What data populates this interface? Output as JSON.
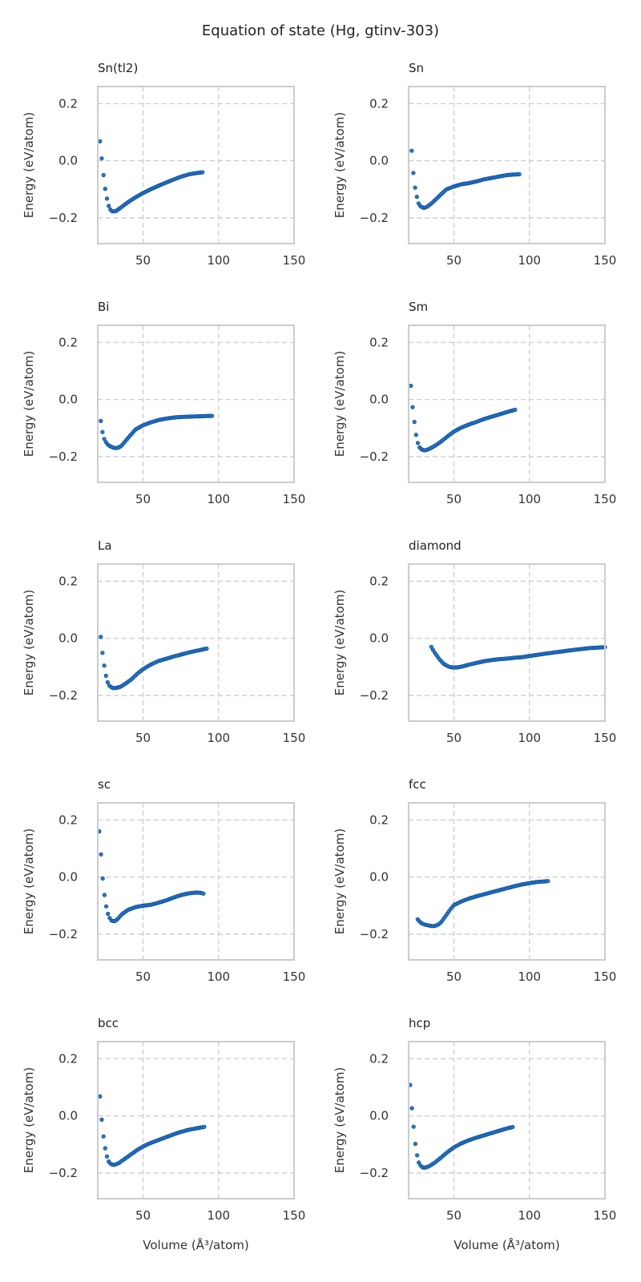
{
  "figure": {
    "title": "Equation of state (Hg, gtinv-303)"
  },
  "colors": {
    "marker": "#1f77d4",
    "marker_edge": "#0b3f7a",
    "grid": "#cccccc",
    "frame": "#cccccc"
  },
  "chart_data": [
    {
      "type": "scatter",
      "title": "Sn(tl2)",
      "xlabel": "",
      "ylabel": "Energy (eV/atom)",
      "xlim": [
        20,
        150
      ],
      "ylim": [
        -0.29,
        0.26
      ],
      "xticks": [
        "50",
        "100",
        "150"
      ],
      "yticks": [
        "0.2",
        "0.0",
        "−0.2"
      ],
      "grid": true,
      "anchors": [
        [
          21.5,
          0.068
        ],
        [
          23,
          -0.01
        ],
        [
          24,
          -0.06
        ],
        [
          25,
          -0.1
        ],
        [
          26,
          -0.13
        ],
        [
          27,
          -0.155
        ],
        [
          28,
          -0.168
        ],
        [
          29,
          -0.175
        ],
        [
          30,
          -0.178
        ],
        [
          32,
          -0.176
        ],
        [
          35,
          -0.165
        ],
        [
          40,
          -0.145
        ],
        [
          45,
          -0.128
        ],
        [
          50,
          -0.113
        ],
        [
          55,
          -0.1
        ],
        [
          60,
          -0.088
        ],
        [
          65,
          -0.077
        ],
        [
          70,
          -0.066
        ],
        [
          75,
          -0.056
        ],
        [
          80,
          -0.048
        ],
        [
          85,
          -0.043
        ],
        [
          90,
          -0.04
        ]
      ]
    },
    {
      "type": "scatter",
      "title": "Sn",
      "xlabel": "",
      "ylabel": "Energy (eV/atom)",
      "xlim": [
        20,
        150
      ],
      "ylim": [
        -0.29,
        0.26
      ],
      "xticks": [
        "50",
        "100",
        "150"
      ],
      "yticks": [
        "0.2",
        "0.0",
        "−0.2"
      ],
      "grid": true,
      "anchors": [
        [
          22,
          0.035
        ],
        [
          23,
          -0.035
        ],
        [
          24,
          -0.085
        ],
        [
          25,
          -0.115
        ],
        [
          26,
          -0.14
        ],
        [
          27,
          -0.155
        ],
        [
          28,
          -0.16
        ],
        [
          30,
          -0.165
        ],
        [
          32,
          -0.162
        ],
        [
          35,
          -0.15
        ],
        [
          40,
          -0.125
        ],
        [
          45,
          -0.1
        ],
        [
          50,
          -0.09
        ],
        [
          55,
          -0.082
        ],
        [
          60,
          -0.078
        ],
        [
          65,
          -0.072
        ],
        [
          70,
          -0.065
        ],
        [
          75,
          -0.06
        ],
        [
          80,
          -0.055
        ],
        [
          85,
          -0.05
        ],
        [
          90,
          -0.048
        ],
        [
          94,
          -0.047
        ]
      ]
    },
    {
      "type": "scatter",
      "title": "Bi",
      "xlabel": "",
      "ylabel": "Energy (eV/atom)",
      "xlim": [
        20,
        150
      ],
      "ylim": [
        -0.29,
        0.26
      ],
      "xticks": [
        "50",
        "100",
        "150"
      ],
      "yticks": [
        "0.2",
        "0.0",
        "−0.2"
      ],
      "grid": true,
      "anchors": [
        [
          22,
          -0.075
        ],
        [
          23,
          -0.11
        ],
        [
          24,
          -0.135
        ],
        [
          25,
          -0.145
        ],
        [
          26,
          -0.155
        ],
        [
          28,
          -0.163
        ],
        [
          30,
          -0.168
        ],
        [
          32,
          -0.17
        ],
        [
          34,
          -0.168
        ],
        [
          36,
          -0.16
        ],
        [
          40,
          -0.135
        ],
        [
          45,
          -0.105
        ],
        [
          50,
          -0.09
        ],
        [
          55,
          -0.08
        ],
        [
          60,
          -0.072
        ],
        [
          65,
          -0.067
        ],
        [
          70,
          -0.063
        ],
        [
          75,
          -0.061
        ],
        [
          80,
          -0.06
        ],
        [
          85,
          -0.059
        ],
        [
          90,
          -0.058
        ],
        [
          96,
          -0.057
        ]
      ]
    },
    {
      "type": "scatter",
      "title": "Sm",
      "xlabel": "",
      "ylabel": "Energy (eV/atom)",
      "xlim": [
        20,
        150
      ],
      "ylim": [
        -0.29,
        0.26
      ],
      "xticks": [
        "50",
        "100",
        "150"
      ],
      "yticks": [
        "0.2",
        "0.0",
        "−0.2"
      ],
      "grid": true,
      "anchors": [
        [
          21.5,
          0.048
        ],
        [
          22.5,
          -0.02
        ],
        [
          23.5,
          -0.065
        ],
        [
          24.5,
          -0.11
        ],
        [
          25.5,
          -0.14
        ],
        [
          26.5,
          -0.16
        ],
        [
          27.5,
          -0.17
        ],
        [
          29,
          -0.176
        ],
        [
          31,
          -0.178
        ],
        [
          34,
          -0.172
        ],
        [
          38,
          -0.16
        ],
        [
          42,
          -0.145
        ],
        [
          46,
          -0.128
        ],
        [
          50,
          -0.112
        ],
        [
          55,
          -0.098
        ],
        [
          60,
          -0.087
        ],
        [
          65,
          -0.078
        ],
        [
          70,
          -0.068
        ],
        [
          75,
          -0.06
        ],
        [
          80,
          -0.052
        ],
        [
          85,
          -0.044
        ],
        [
          91,
          -0.035
        ]
      ]
    },
    {
      "type": "scatter",
      "title": "La",
      "xlabel": "",
      "ylabel": "Energy (eV/atom)",
      "xlim": [
        20,
        150
      ],
      "ylim": [
        -0.29,
        0.26
      ],
      "xticks": [
        "50",
        "100",
        "150"
      ],
      "yticks": [
        "0.2",
        "0.0",
        "−0.2"
      ],
      "grid": true,
      "anchors": [
        [
          22,
          0.005
        ],
        [
          23,
          -0.045
        ],
        [
          24,
          -0.085
        ],
        [
          25,
          -0.12
        ],
        [
          26,
          -0.145
        ],
        [
          27,
          -0.16
        ],
        [
          28,
          -0.168
        ],
        [
          30,
          -0.174
        ],
        [
          32,
          -0.174
        ],
        [
          35,
          -0.17
        ],
        [
          38,
          -0.16
        ],
        [
          42,
          -0.145
        ],
        [
          46,
          -0.125
        ],
        [
          50,
          -0.108
        ],
        [
          55,
          -0.092
        ],
        [
          60,
          -0.08
        ],
        [
          65,
          -0.072
        ],
        [
          70,
          -0.064
        ],
        [
          75,
          -0.057
        ],
        [
          80,
          -0.05
        ],
        [
          85,
          -0.044
        ],
        [
          93,
          -0.035
        ]
      ]
    },
    {
      "type": "scatter",
      "title": "diamond",
      "xlabel": "",
      "ylabel": "Energy (eV/atom)",
      "xlim": [
        20,
        150
      ],
      "ylim": [
        -0.29,
        0.26
      ],
      "xticks": [
        "50",
        "100",
        "150"
      ],
      "yticks": [
        "0.2",
        "0.0",
        "−0.2"
      ],
      "grid": true,
      "anchors": [
        [
          35,
          -0.03
        ],
        [
          37,
          -0.048
        ],
        [
          39,
          -0.063
        ],
        [
          41,
          -0.077
        ],
        [
          43,
          -0.088
        ],
        [
          45,
          -0.095
        ],
        [
          47,
          -0.1
        ],
        [
          49,
          -0.102
        ],
        [
          52,
          -0.102
        ],
        [
          56,
          -0.098
        ],
        [
          60,
          -0.092
        ],
        [
          65,
          -0.086
        ],
        [
          70,
          -0.08
        ],
        [
          75,
          -0.076
        ],
        [
          80,
          -0.073
        ],
        [
          85,
          -0.071
        ],
        [
          90,
          -0.068
        ],
        [
          95,
          -0.066
        ],
        [
          100,
          -0.062
        ],
        [
          110,
          -0.054
        ],
        [
          120,
          -0.047
        ],
        [
          130,
          -0.04
        ],
        [
          140,
          -0.034
        ],
        [
          150,
          -0.031
        ]
      ]
    },
    {
      "type": "scatter",
      "title": "sc",
      "xlabel": "",
      "ylabel": "Energy (eV/atom)",
      "xlim": [
        20,
        150
      ],
      "ylim": [
        -0.29,
        0.26
      ],
      "xticks": [
        "50",
        "100",
        "150"
      ],
      "yticks": [
        "0.2",
        "0.0",
        "−0.2"
      ],
      "grid": true,
      "anchors": [
        [
          21,
          0.16
        ],
        [
          22.5,
          0.055
        ],
        [
          23.5,
          -0.02
        ],
        [
          24.5,
          -0.065
        ],
        [
          25.5,
          -0.1
        ],
        [
          26.5,
          -0.125
        ],
        [
          27.5,
          -0.14
        ],
        [
          29,
          -0.152
        ],
        [
          31,
          -0.155
        ],
        [
          33,
          -0.148
        ],
        [
          36,
          -0.13
        ],
        [
          40,
          -0.115
        ],
        [
          45,
          -0.105
        ],
        [
          50,
          -0.1
        ],
        [
          55,
          -0.097
        ],
        [
          60,
          -0.09
        ],
        [
          65,
          -0.082
        ],
        [
          70,
          -0.072
        ],
        [
          75,
          -0.063
        ],
        [
          80,
          -0.057
        ],
        [
          85,
          -0.054
        ],
        [
          88,
          -0.055
        ],
        [
          90,
          -0.058
        ]
      ]
    },
    {
      "type": "scatter",
      "title": "fcc",
      "xlabel": "",
      "ylabel": "Energy (eV/atom)",
      "xlim": [
        20,
        150
      ],
      "ylim": [
        -0.29,
        0.26
      ],
      "xticks": [
        "50",
        "100",
        "150"
      ],
      "yticks": [
        "0.2",
        "0.0",
        "−0.2"
      ],
      "grid": true,
      "anchors": [
        [
          26,
          -0.148
        ],
        [
          28,
          -0.16
        ],
        [
          30,
          -0.165
        ],
        [
          32,
          -0.168
        ],
        [
          34,
          -0.17
        ],
        [
          36,
          -0.172
        ],
        [
          38,
          -0.17
        ],
        [
          40,
          -0.165
        ],
        [
          42,
          -0.155
        ],
        [
          44,
          -0.14
        ],
        [
          46,
          -0.125
        ],
        [
          48,
          -0.11
        ],
        [
          50,
          -0.098
        ],
        [
          55,
          -0.085
        ],
        [
          60,
          -0.075
        ],
        [
          65,
          -0.067
        ],
        [
          70,
          -0.06
        ],
        [
          75,
          -0.053
        ],
        [
          80,
          -0.046
        ],
        [
          85,
          -0.039
        ],
        [
          90,
          -0.032
        ],
        [
          95,
          -0.026
        ],
        [
          100,
          -0.021
        ],
        [
          105,
          -0.017
        ],
        [
          110,
          -0.015
        ],
        [
          113,
          -0.014
        ]
      ]
    },
    {
      "type": "scatter",
      "title": "bcc",
      "xlabel": "Volume (Å³/atom)",
      "ylabel": "Energy (eV/atom)",
      "xlim": [
        20,
        150
      ],
      "ylim": [
        -0.29,
        0.26
      ],
      "xticks": [
        "50",
        "100",
        "150"
      ],
      "yticks": [
        "0.2",
        "0.0",
        "−0.2"
      ],
      "grid": true,
      "anchors": [
        [
          21.5,
          0.068
        ],
        [
          22.5,
          -0.005
        ],
        [
          23.5,
          -0.06
        ],
        [
          24.5,
          -0.1
        ],
        [
          25.5,
          -0.13
        ],
        [
          26.5,
          -0.15
        ],
        [
          27.5,
          -0.163
        ],
        [
          29,
          -0.17
        ],
        [
          31,
          -0.172
        ],
        [
          34,
          -0.165
        ],
        [
          38,
          -0.15
        ],
        [
          42,
          -0.135
        ],
        [
          46,
          -0.12
        ],
        [
          50,
          -0.107
        ],
        [
          55,
          -0.095
        ],
        [
          60,
          -0.085
        ],
        [
          65,
          -0.075
        ],
        [
          70,
          -0.065
        ],
        [
          75,
          -0.056
        ],
        [
          80,
          -0.049
        ],
        [
          85,
          -0.044
        ],
        [
          91,
          -0.038
        ]
      ]
    },
    {
      "type": "scatter",
      "title": "hcp",
      "xlabel": "Volume (Å³/atom)",
      "ylabel": "Energy (eV/atom)",
      "xlim": [
        20,
        150
      ],
      "ylim": [
        -0.29,
        0.26
      ],
      "xticks": [
        "50",
        "100",
        "150"
      ],
      "yticks": [
        "0.2",
        "0.0",
        "−0.2"
      ],
      "grid": true,
      "anchors": [
        [
          21,
          0.108
        ],
        [
          22,
          0.035
        ],
        [
          23,
          -0.02
        ],
        [
          24,
          -0.08
        ],
        [
          25,
          -0.12
        ],
        [
          26,
          -0.15
        ],
        [
          27,
          -0.168
        ],
        [
          28.5,
          -0.178
        ],
        [
          30,
          -0.182
        ],
        [
          33,
          -0.178
        ],
        [
          37,
          -0.165
        ],
        [
          41,
          -0.148
        ],
        [
          45,
          -0.13
        ],
        [
          50,
          -0.11
        ],
        [
          55,
          -0.096
        ],
        [
          60,
          -0.085
        ],
        [
          65,
          -0.076
        ],
        [
          70,
          -0.068
        ],
        [
          75,
          -0.06
        ],
        [
          80,
          -0.052
        ],
        [
          85,
          -0.044
        ],
        [
          89,
          -0.039
        ]
      ]
    }
  ]
}
